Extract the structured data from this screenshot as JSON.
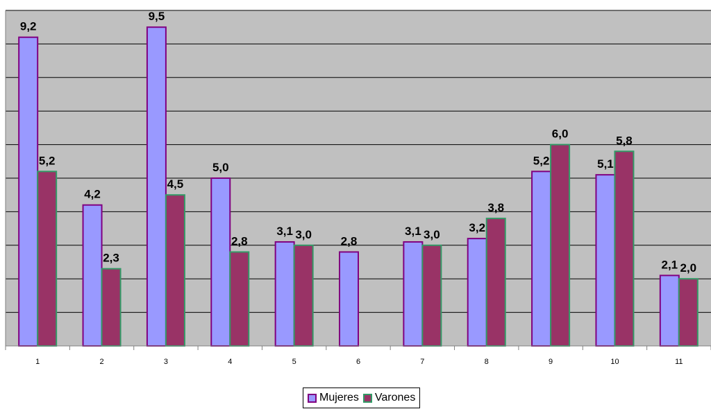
{
  "chart_data": {
    "type": "bar",
    "categories": [
      "1",
      "2",
      "3",
      "4",
      "5",
      "6",
      "7",
      "8",
      "9",
      "10",
      "11"
    ],
    "series": [
      {
        "name": "Mujeres",
        "values": [
          9.2,
          4.2,
          9.5,
          5.0,
          3.1,
          2.8,
          3.1,
          3.2,
          5.2,
          5.1,
          2.1
        ],
        "labels": [
          "9,2",
          "4,2",
          "9,5",
          "5,0",
          "3,1",
          "2,8",
          "3,1",
          "3,2",
          "5,2",
          "5,1",
          "2,1"
        ],
        "fill": "#9999ff",
        "stroke": "#800080"
      },
      {
        "name": "Varones",
        "values": [
          5.2,
          2.3,
          4.5,
          2.8,
          3.0,
          null,
          3.0,
          3.8,
          6.0,
          5.8,
          2.0
        ],
        "labels": [
          "5,2",
          "2,3",
          "4,5",
          "2,8",
          "3,0",
          "",
          "3,0",
          "3,8",
          "6,0",
          "5,8",
          "2,0"
        ],
        "fill": "#993366",
        "stroke": "#339966"
      }
    ],
    "ylim": [
      0,
      10
    ],
    "grid": true,
    "legend_position": "bottom",
    "colors": {
      "plot_background": "#c0c0c0",
      "gridline": "#000000"
    }
  }
}
